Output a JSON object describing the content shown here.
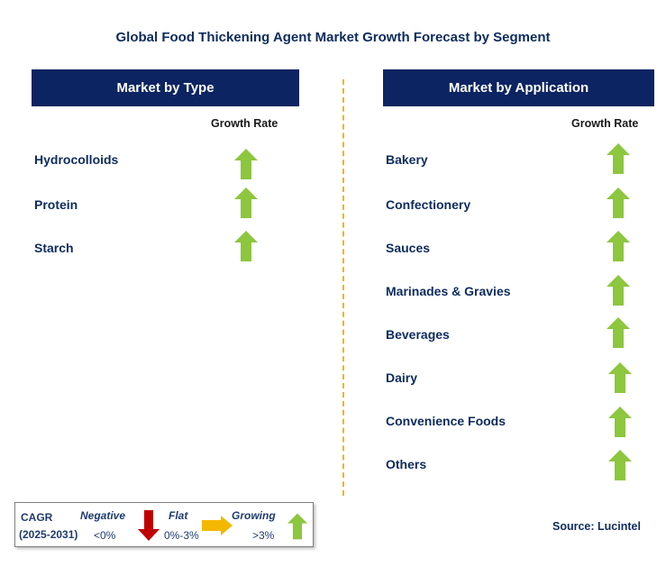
{
  "title": "Global Food Thickening Agent Market Growth Forecast by Segment",
  "left_panel": {
    "header": "Market by Type",
    "column_label": "Growth Rate",
    "rows": [
      {
        "label": "Hydrocolloids",
        "trend": "growing"
      },
      {
        "label": "Protein",
        "trend": "growing"
      },
      {
        "label": "Starch",
        "trend": "growing"
      }
    ]
  },
  "right_panel": {
    "header": "Market by Application",
    "column_label": "Growth Rate",
    "rows": [
      {
        "label": "Bakery",
        "trend": "growing"
      },
      {
        "label": "Confectionery",
        "trend": "growing"
      },
      {
        "label": "Sauces",
        "trend": "growing"
      },
      {
        "label": "Marinades & Gravies",
        "trend": "growing"
      },
      {
        "label": "Beverages",
        "trend": "growing"
      },
      {
        "label": "Dairy",
        "trend": "growing"
      },
      {
        "label": "Convenience Foods",
        "trend": "growing"
      },
      {
        "label": "Others",
        "trend": "growing"
      }
    ]
  },
  "legend": {
    "cagr_label": "CAGR",
    "period": "(2025-2031)",
    "negative_label": "Negative",
    "negative_range": "<0%",
    "flat_label": "Flat",
    "flat_range": "0%-3%",
    "growing_label": "Growing",
    "growing_range": ">3%"
  },
  "source": "Source: Lucintel",
  "colors": {
    "header_bg": "#0c2461",
    "growing_arrow": "#8dc63f",
    "negative_arrow": "#c00000",
    "flat_arrow": "#f5b800",
    "divider": "#f2b21e"
  }
}
